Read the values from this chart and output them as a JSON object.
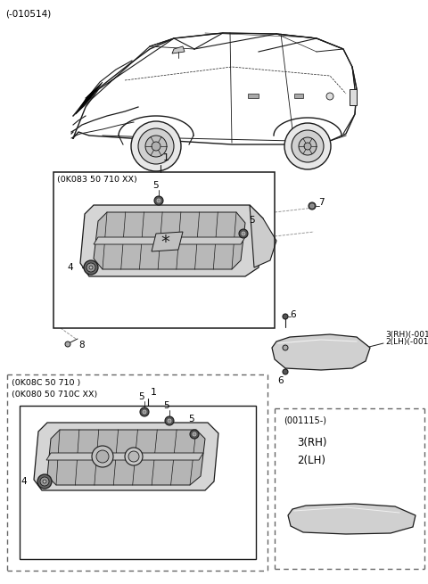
{
  "bg_color": "#ffffff",
  "line_color": "#1a1a1a",
  "dash_color": "#888888",
  "top_label": "(-010514)",
  "part_code_1": "(0K083 50 710 XX)",
  "part_code_2a": "(0K08C 50 710 )",
  "part_code_2b": "(0K080 50 710C XX)",
  "part_code_3": "(001115-)",
  "fig_size": [
    4.8,
    6.55
  ],
  "dpi": 100
}
